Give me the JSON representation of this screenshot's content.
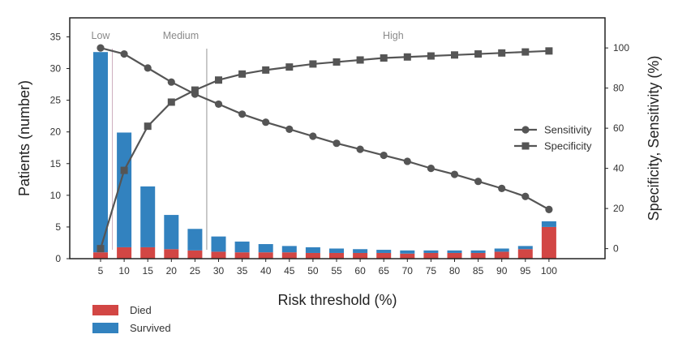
{
  "chart_data": {
    "type": "bar",
    "x": [
      "5",
      "10",
      "15",
      "20",
      "25",
      "30",
      "35",
      "40",
      "45",
      "50",
      "55",
      "60",
      "65",
      "70",
      "75",
      "80",
      "85",
      "90",
      "95",
      "100"
    ],
    "xlabel": "Risk threshold (%)",
    "ylabel": "Patients (number)",
    "y2label": "Specificity, Sensitivity (%)",
    "ylim": [
      0,
      38
    ],
    "y2lim": [
      -5,
      115
    ],
    "yticks": [
      0,
      5,
      10,
      15,
      20,
      25,
      30,
      35
    ],
    "y2ticks": [
      0,
      20,
      40,
      60,
      80,
      100
    ],
    "stacked_series": [
      {
        "name": "Died",
        "color": "#d24644",
        "values": [
          1.0,
          1.8,
          1.8,
          1.5,
          1.3,
          1.1,
          1.0,
          1.0,
          1.0,
          0.9,
          0.9,
          0.9,
          0.9,
          0.8,
          0.9,
          0.9,
          0.9,
          1.1,
          1.5,
          5.0
        ]
      },
      {
        "name": "Survived",
        "color": "#3282bf",
        "values": [
          31.6,
          18.1,
          9.6,
          5.4,
          3.4,
          2.4,
          1.7,
          1.3,
          1.0,
          0.9,
          0.7,
          0.6,
          0.5,
          0.5,
          0.4,
          0.4,
          0.4,
          0.5,
          0.5,
          0.9
        ]
      }
    ],
    "line_series": [
      {
        "name": "Sensitivity",
        "marker": "circle",
        "color": "#555555",
        "values": [
          100,
          97,
          90,
          83,
          77,
          72,
          67,
          63,
          59.5,
          56,
          52.5,
          49.5,
          46.5,
          43.5,
          40,
          37,
          33.5,
          30,
          26,
          19.5
        ]
      },
      {
        "name": "Specificity",
        "marker": "square",
        "color": "#555555",
        "values": [
          0,
          39,
          61,
          73,
          79,
          84,
          87,
          89,
          90.5,
          92,
          93,
          94,
          95,
          95.5,
          96,
          96.5,
          97,
          97.5,
          98,
          98.5
        ]
      }
    ],
    "zones": [
      {
        "label": "Low",
        "x_position": 5
      },
      {
        "label": "Medium",
        "x_position": 22
      },
      {
        "label": "High",
        "x_position": 67
      }
    ],
    "zone_dividers": [
      7.5,
      27.5
    ],
    "legend_bars": [
      "Died",
      "Survived"
    ],
    "legend_lines": [
      "Sensitivity",
      "Specificity"
    ],
    "grid": false,
    "legend_placement": "bars: bottom-left below chart; lines: right-middle inside plot"
  }
}
